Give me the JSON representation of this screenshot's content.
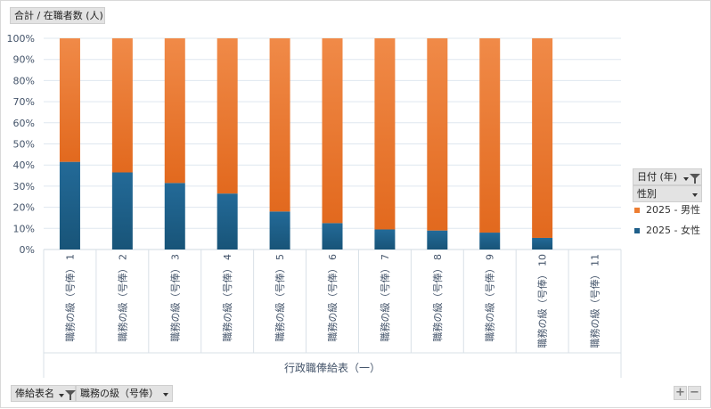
{
  "field_buttons": {
    "value_field": "合計 / 在職者数 (人)",
    "legend_date_field": "日付 (年)",
    "legend_sex_field": "性別",
    "axis_payscale_field": "俸給表名",
    "axis_grade_field": "職務の級（号俸）"
  },
  "zoom": {
    "plus": "+",
    "minus": "−"
  },
  "colors": {
    "male": "#ED7D31",
    "female": "#1F5F8A",
    "grid": "#dfe7ef",
    "axis_text": "#44546A"
  },
  "chart_data": {
    "type": "bar",
    "stacked": "percent",
    "title": "",
    "group_label": "行政職俸給表（一）",
    "categories": [
      "職務の級（号俸） 1",
      "職務の級（号俸） 2",
      "職務の級（号俸） 3",
      "職務の級（号俸） 4",
      "職務の級（号俸） 5",
      "職務の級（号俸） 6",
      "職務の級（号俸） 7",
      "職務の級（号俸） 8",
      "職務の級（号俸） 9",
      "職務の級（号俸） 10",
      "職務の級（号俸） 11"
    ],
    "series": [
      {
        "name": "2025 - 女性",
        "values": [
          41.5,
          36.5,
          31.5,
          26.5,
          18,
          12.5,
          9.5,
          9,
          8,
          5.5,
          null
        ],
        "color": "#1F5F8A"
      },
      {
        "name": "2025 - 男性",
        "values": [
          58.5,
          63.5,
          68.5,
          73.5,
          82,
          87.5,
          90.5,
          91,
          92,
          94.5,
          null
        ],
        "color": "#ED7D31"
      }
    ],
    "legend_order": [
      "2025 - 男性",
      "2025 - 女性"
    ],
    "y_ticks": [
      "0%",
      "10%",
      "20%",
      "30%",
      "40%",
      "50%",
      "60%",
      "70%",
      "80%",
      "90%",
      "100%"
    ],
    "ylim": [
      0,
      100
    ],
    "grid": true,
    "legend_position": "right"
  }
}
